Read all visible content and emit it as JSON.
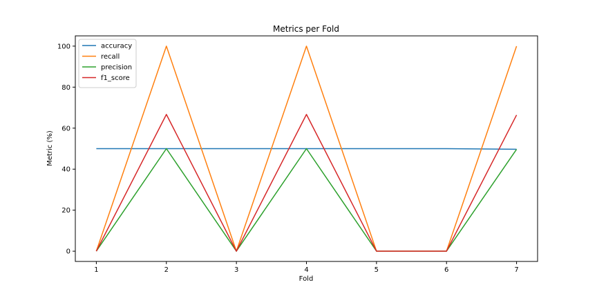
{
  "chart_data": {
    "type": "line",
    "title": "Metrics per Fold",
    "xlabel": "Fold",
    "ylabel": "Metric (%)",
    "x": [
      1,
      2,
      3,
      4,
      5,
      6,
      7
    ],
    "xlim": [
      0.7,
      7.3
    ],
    "ylim": [
      -5,
      105
    ],
    "xticks": [
      1,
      2,
      3,
      4,
      5,
      6,
      7
    ],
    "yticks": [
      0,
      20,
      40,
      60,
      80,
      100
    ],
    "grid": false,
    "legend_position": "top-left",
    "series": [
      {
        "name": "accuracy",
        "color": "#1f77b4",
        "values": [
          50,
          50,
          50,
          50,
          50,
          50,
          49.7
        ]
      },
      {
        "name": "recall",
        "color": "#ff7f0e",
        "values": [
          0,
          100,
          0,
          100,
          0,
          0,
          100
        ]
      },
      {
        "name": "precision",
        "color": "#2ca02c",
        "values": [
          0,
          50,
          0,
          50,
          0,
          0,
          49.7
        ]
      },
      {
        "name": "f1_score",
        "color": "#d62728",
        "values": [
          0,
          66.7,
          0,
          66.7,
          0,
          0,
          66.4
        ]
      }
    ]
  }
}
